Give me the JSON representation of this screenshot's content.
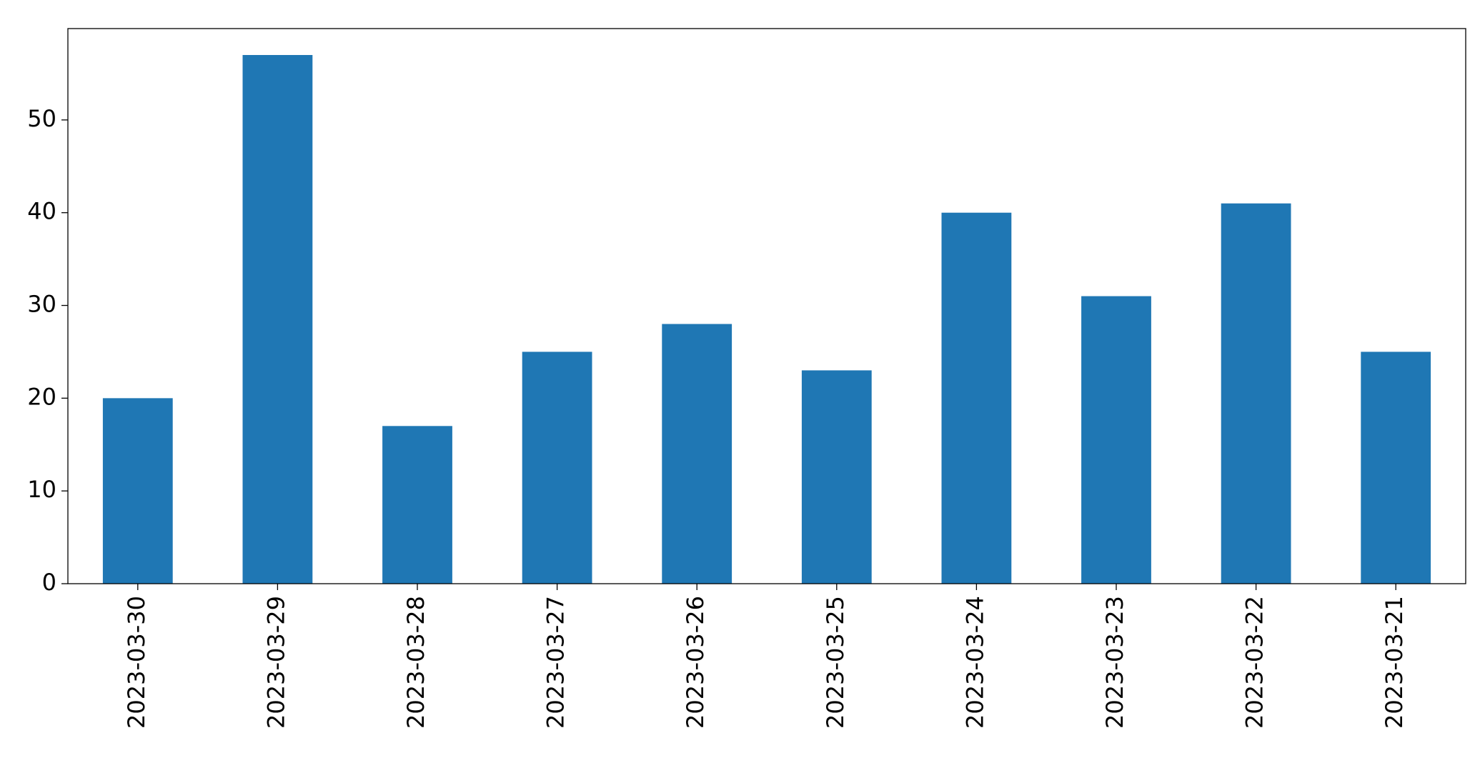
{
  "chart_data": {
    "type": "bar",
    "categories": [
      "2023-03-30",
      "2023-03-29",
      "2023-03-28",
      "2023-03-27",
      "2023-03-26",
      "2023-03-25",
      "2023-03-24",
      "2023-03-23",
      "2023-03-22",
      "2023-03-21"
    ],
    "values": [
      20,
      57,
      17,
      25,
      28,
      23,
      40,
      31,
      41,
      25
    ],
    "color": "#1f77b4",
    "ylim": [
      0,
      59.85
    ],
    "yticks": [
      0,
      10,
      20,
      30,
      40,
      50
    ],
    "grid": false
  }
}
